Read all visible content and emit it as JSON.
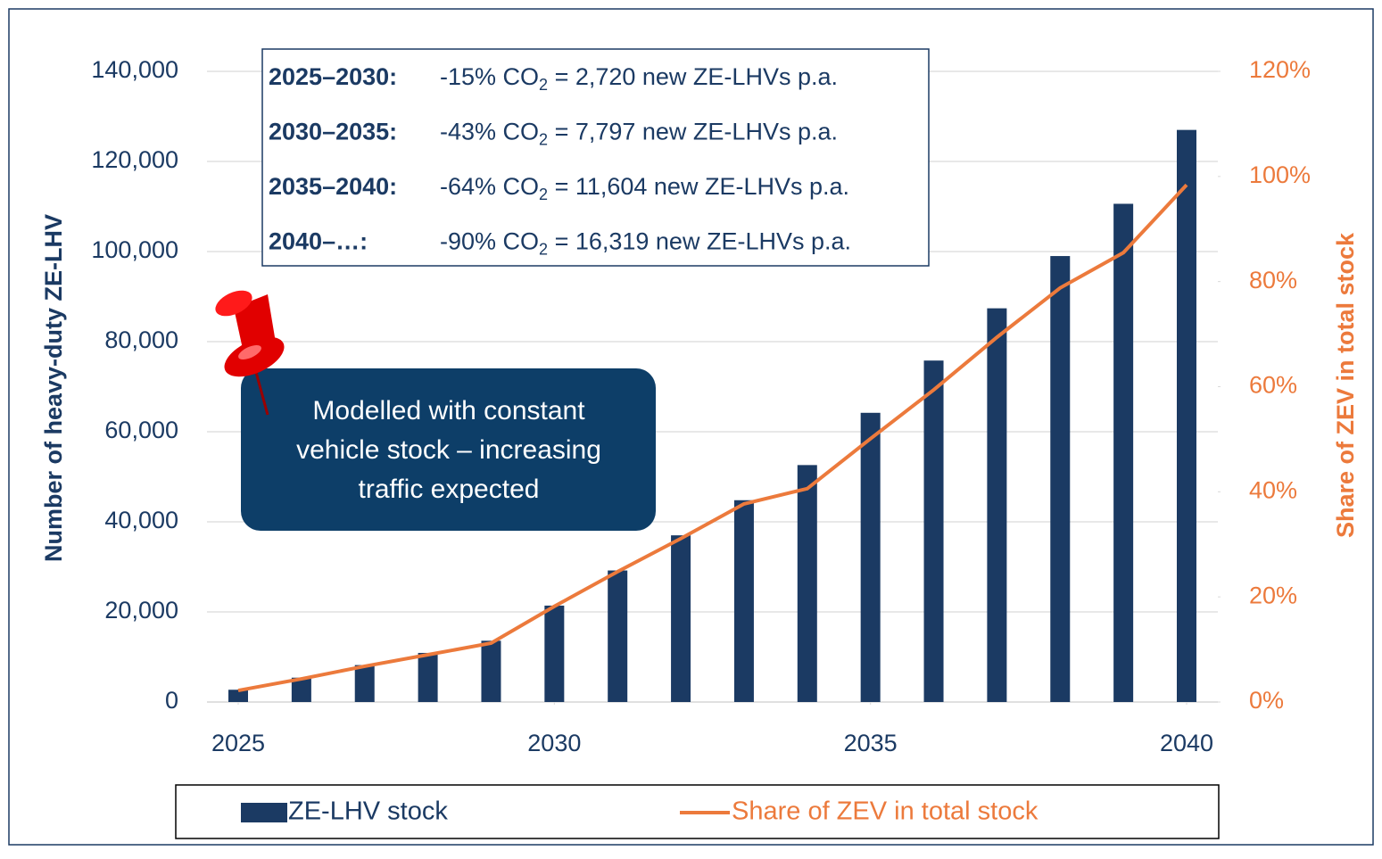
{
  "chart_data": {
    "type": "bar",
    "x": [
      2025,
      2026,
      2027,
      2028,
      2029,
      2030,
      2031,
      2032,
      2033,
      2034,
      2035,
      2036,
      2037,
      2038,
      2039,
      2040
    ],
    "xlim": [
      2025,
      2040
    ],
    "xticks": [
      2025,
      2030,
      2035,
      2040
    ],
    "ylim": [
      0,
      140000
    ],
    "yticks": [
      0,
      {
        "value": 20000,
        "label": "20,000"
      },
      {
        "value": 40000,
        "label": "40,000"
      },
      {
        "value": 60000,
        "label": "60,000"
      },
      {
        "value": 80000,
        "label": "80,000"
      },
      {
        "value": 100000,
        "label": "100,000"
      },
      {
        "value": 120000,
        "label": "120,000"
      },
      {
        "value": 140000,
        "label": "140,000"
      }
    ],
    "y2lim": [
      0,
      120
    ],
    "y2ticks": [
      {
        "value": 0,
        "label": "0%"
      },
      {
        "value": 20,
        "label": "20%"
      },
      {
        "value": 40,
        "label": "40%"
      },
      {
        "value": 60,
        "label": "60%"
      },
      {
        "value": 80,
        "label": "80%"
      },
      {
        "value": 100,
        "label": "100%"
      },
      {
        "value": 120,
        "label": "120%"
      }
    ],
    "ylabel": "Number of heavy-duty ZE-LHV",
    "y2label": "Share of ZEV in total stock",
    "grid": true,
    "series": [
      {
        "name": "ZE-LHV stock",
        "type": "bar",
        "color": "#1b3a63",
        "values": [
          2720,
          5400,
          8200,
          10900,
          13600,
          21400,
          29200,
          37000,
          44800,
          52600,
          64200,
          75800,
          87400,
          99000,
          110600,
          127000
        ]
      },
      {
        "name": "Share of ZEV in total stock",
        "type": "line",
        "axis": "y2",
        "color": "#ec7a3c",
        "values": [
          2.2,
          4.4,
          6.8,
          9.0,
          11.2,
          18.2,
          24.8,
          31.1,
          37.7,
          40.6,
          50.1,
          59.4,
          69.4,
          78.8,
          85.5,
          98.4
        ]
      }
    ],
    "info_box": [
      {
        "period": "2025–2030:",
        "text": "-15% CO",
        "sub": "2",
        "rest": " = 2,720 new ZE-LHVs p.a."
      },
      {
        "period": "2030–2035:",
        "text": "-43% CO",
        "sub": "2",
        "rest": " = 7,797 new ZE-LHVs p.a."
      },
      {
        "period": "2035–2040:",
        "text": "-64% CO",
        "sub": "2",
        "rest": " = 11,604 new ZE-LHVs p.a."
      },
      {
        "period": "2040–…:",
        "text": "-90% CO",
        "sub": "2",
        "rest": " = 16,319 new ZE-LHVs p.a."
      }
    ],
    "callout": [
      "Modelled with constant",
      "vehicle stock – increasing",
      "traffic expected"
    ]
  }
}
